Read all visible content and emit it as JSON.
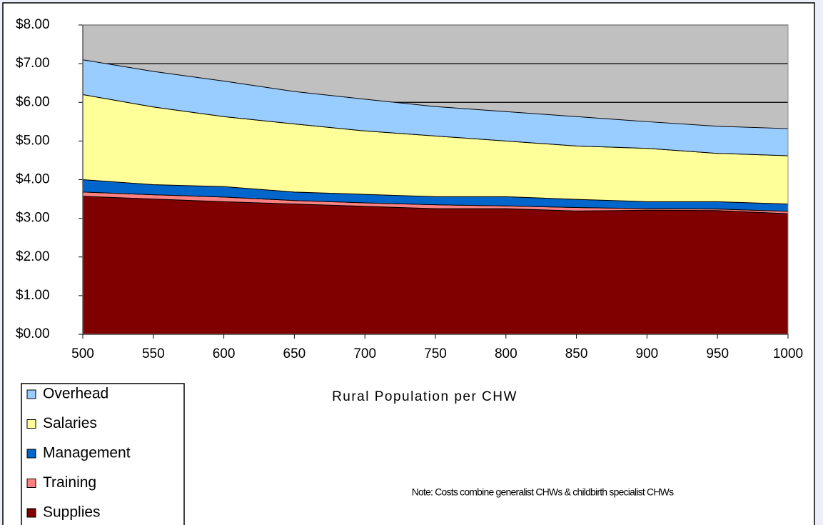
{
  "chart_data": {
    "type": "stacked_area",
    "x": [
      500,
      550,
      600,
      650,
      700,
      750,
      800,
      850,
      900,
      950,
      1000
    ],
    "series": [
      {
        "name": "Supplies",
        "color": "#800000",
        "values": [
          3.57,
          3.5,
          3.43,
          3.37,
          3.31,
          3.25,
          3.25,
          3.19,
          3.21,
          3.2,
          3.12
        ]
      },
      {
        "name": "Training",
        "color": "#ff8080",
        "values": [
          0.11,
          0.11,
          0.12,
          0.09,
          0.09,
          0.1,
          0.07,
          0.09,
          0.04,
          0.04,
          0.06
        ]
      },
      {
        "name": "Management",
        "color": "#0066cc",
        "values": [
          0.32,
          0.26,
          0.27,
          0.22,
          0.22,
          0.21,
          0.24,
          0.21,
          0.18,
          0.19,
          0.19
        ]
      },
      {
        "name": "Salaries",
        "color": "#ffff99",
        "values": [
          2.2,
          2.01,
          1.81,
          1.76,
          1.64,
          1.57,
          1.44,
          1.38,
          1.38,
          1.25,
          1.25
        ]
      },
      {
        "name": "Overhead",
        "color": "#99ccff",
        "values": [
          0.9,
          0.92,
          0.92,
          0.84,
          0.82,
          0.76,
          0.76,
          0.76,
          0.69,
          0.7,
          0.7
        ]
      }
    ],
    "xlabel": "Rural Population per CHW",
    "note": "Note: Costs combine generalist CHWs & childbirth specialist CHWs",
    "xlim": [
      500,
      1000
    ],
    "xticks": [
      500,
      550,
      600,
      650,
      700,
      750,
      800,
      850,
      900,
      950,
      1000
    ],
    "ylim": [
      0,
      8
    ],
    "yticks": [
      {
        "value": 0,
        "label": "$0.00"
      },
      {
        "value": 1,
        "label": "$1.00"
      },
      {
        "value": 2,
        "label": "$2.00"
      },
      {
        "value": 3,
        "label": "$3.00"
      },
      {
        "value": 4,
        "label": "$4.00"
      },
      {
        "value": 5,
        "label": "$5.00"
      },
      {
        "value": 6,
        "label": "$6.00"
      },
      {
        "value": 7,
        "label": "$7.00"
      },
      {
        "value": 8,
        "label": "$8.00"
      }
    ],
    "grid": true,
    "plot_background": "#c0c0c0",
    "legend": "bottom-left"
  }
}
